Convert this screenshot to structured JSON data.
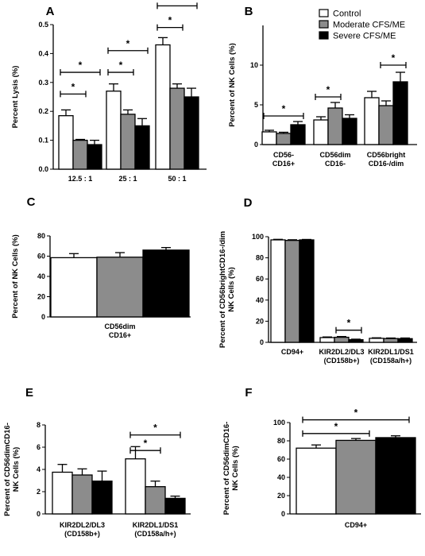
{
  "colors": {
    "Control": "#ffffff",
    "Moderate CFS/ME": "#8c8c8c",
    "Severe CFS/ME": "#000000"
  },
  "legend": {
    "items": [
      "Control",
      "Moderate CFS/ME",
      "Severe CFS/ME"
    ],
    "placement": "top-right of panel B"
  },
  "chart_data": [
    {
      "panel": "A",
      "type": "bar",
      "ylabel": "Percent Lysis (%)",
      "ylim": [
        0,
        0.5
      ],
      "yticks": [
        0,
        0.1,
        0.2,
        0.3,
        0.4,
        0.5
      ],
      "ytick_labels": [
        "0.0",
        "0.1",
        "0.2",
        "0.3",
        "0.4",
        "0.5"
      ],
      "categories": [
        [
          "12.5 : 1"
        ],
        [
          "25 : 1"
        ],
        [
          "50 : 1"
        ]
      ],
      "series": [
        {
          "name": "Control",
          "values": [
            0.185,
            0.27,
            0.43
          ],
          "errors": [
            0.02,
            0.025,
            0.025
          ]
        },
        {
          "name": "Moderate CFS/ME",
          "values": [
            0.1,
            0.19,
            0.28
          ],
          "errors": [
            0.003,
            0.015,
            0.015
          ]
        },
        {
          "name": "Severe CFS/ME",
          "values": [
            0.085,
            0.15,
            0.25
          ],
          "errors": [
            0.015,
            0.025,
            0.03
          ]
        }
      ],
      "significance": [
        {
          "category": 0,
          "from": 0,
          "to": 1,
          "y": 0.26,
          "label": "*"
        },
        {
          "category": 0,
          "from": 0,
          "to": 2,
          "y": 0.335,
          "label": "*"
        },
        {
          "category": 1,
          "from": 0,
          "to": 1,
          "y": 0.335,
          "label": "*"
        },
        {
          "category": 1,
          "from": 0,
          "to": 2,
          "y": 0.41,
          "label": "*"
        },
        {
          "category": 2,
          "from": 0,
          "to": 1,
          "y": 0.49,
          "label": "*"
        },
        {
          "category": 2,
          "from": 0,
          "to": 2,
          "y": 0.565,
          "label": "*"
        }
      ]
    },
    {
      "panel": "B",
      "type": "bar",
      "ylabel": "Percent of NK Cells (%)",
      "ylim": [
        0,
        15
      ],
      "yticks": [
        0,
        5,
        10
      ],
      "ytick_labels": [
        "0",
        "5",
        "10"
      ],
      "categories": [
        [
          "CD56-",
          "CD16+"
        ],
        [
          "CD56dim",
          "CD16-"
        ],
        [
          "CD56bright",
          "CD16-/dim"
        ]
      ],
      "series": [
        {
          "name": "Control",
          "values": [
            1.6,
            3.1,
            5.9
          ],
          "errors": [
            0.2,
            0.4,
            0.8
          ]
        },
        {
          "name": "Moderate CFS/ME",
          "values": [
            1.4,
            4.6,
            4.9
          ],
          "errors": [
            0.15,
            0.7,
            0.6
          ]
        },
        {
          "name": "Severe CFS/ME",
          "values": [
            2.5,
            3.3,
            7.9
          ],
          "errors": [
            0.4,
            0.45,
            1.2
          ]
        }
      ],
      "significance": [
        {
          "category": 0,
          "from": 0,
          "to": 2,
          "y": 3.6,
          "label": "*"
        },
        {
          "category": 1,
          "from": 0,
          "to": 1,
          "y": 6.0,
          "label": "*"
        },
        {
          "category": 2,
          "from": 1,
          "to": 2,
          "y": 10.0,
          "label": "*"
        }
      ]
    },
    {
      "panel": "C",
      "type": "bar",
      "ylabel": "Percent of NK Cells (%)",
      "ylim": [
        0,
        80
      ],
      "yticks": [
        0,
        20,
        40,
        60,
        80
      ],
      "ytick_labels": [
        "0",
        "20",
        "40",
        "60",
        "80"
      ],
      "categories": [
        [
          "CD56dim",
          "CD16+"
        ]
      ],
      "series": [
        {
          "name": "Control",
          "values": [
            58.5
          ],
          "errors": [
            4.0
          ]
        },
        {
          "name": "Moderate CFS/ME",
          "values": [
            59.0
          ],
          "errors": [
            4.5
          ]
        },
        {
          "name": "Severe CFS/ME",
          "values": [
            66.0
          ],
          "errors": [
            2.5
          ]
        }
      ],
      "significance": []
    },
    {
      "panel": "D",
      "type": "bar",
      "ylabel": [
        "Percent of CD56brightCD16-/dim",
        "NK Cells (%)"
      ],
      "ylim": [
        0,
        100
      ],
      "yticks": [
        0,
        20,
        40,
        60,
        80,
        100
      ],
      "ytick_labels": [
        "0",
        "20",
        "40",
        "60",
        "80",
        "100"
      ],
      "categories": [
        [
          "CD94+"
        ],
        [
          "KIR2DL2/DL3",
          "(CD158b+)"
        ],
        [
          "KIR2DL1/DS1",
          "(CD158a/h+)"
        ]
      ],
      "series": [
        {
          "name": "Control",
          "values": [
            97.0,
            4.5,
            3.8
          ],
          "errors": [
            0.5,
            0.6,
            0.5
          ]
        },
        {
          "name": "Moderate CFS/ME",
          "values": [
            96.5,
            4.8,
            3.6
          ],
          "errors": [
            0.6,
            0.7,
            0.5
          ]
        },
        {
          "name": "Severe CFS/ME",
          "values": [
            97.0,
            2.5,
            3.5
          ],
          "errors": [
            0.4,
            0.5,
            0.6
          ]
        }
      ],
      "significance": [
        {
          "category": 1,
          "from": 1,
          "to": 2,
          "y": 11.5,
          "label": "*"
        }
      ]
    },
    {
      "panel": "E",
      "type": "bar",
      "ylabel": [
        "Percent of CD56dimCD16-",
        "NK Cells (%)"
      ],
      "ylim": [
        0,
        8
      ],
      "yticks": [
        0,
        2,
        4,
        6,
        8
      ],
      "ytick_labels": [
        "0",
        "2",
        "4",
        "6",
        "8"
      ],
      "categories": [
        [
          "KIR2DL2/DL3",
          "(CD158b+)"
        ],
        [
          "KIR2DL1/DS1",
          "(CD158a/h+)"
        ]
      ],
      "series": [
        {
          "name": "Control",
          "values": [
            3.75,
            4.95
          ],
          "errors": [
            0.7,
            1.1
          ]
        },
        {
          "name": "Moderate CFS/ME",
          "values": [
            3.5,
            2.45
          ],
          "errors": [
            0.55,
            0.5
          ]
        },
        {
          "name": "Severe CFS/ME",
          "values": [
            2.95,
            1.4
          ],
          "errors": [
            0.9,
            0.2
          ]
        }
      ],
      "significance": [
        {
          "category": 1,
          "from": 0,
          "to": 1,
          "y": 5.7,
          "label": "*"
        },
        {
          "category": 1,
          "from": 0,
          "to": 2,
          "y": 7.1,
          "label": "*"
        }
      ]
    },
    {
      "panel": "F",
      "type": "bar",
      "ylabel": [
        "Percent of CD56dimCD16-",
        "NK Cells (%)"
      ],
      "ylim": [
        0,
        100
      ],
      "yticks": [
        0,
        20,
        40,
        60,
        80,
        100
      ],
      "ytick_labels": [
        "0",
        "20",
        "40",
        "60",
        "80",
        "100"
      ],
      "categories": [
        [
          "CD94+"
        ]
      ],
      "series": [
        {
          "name": "Control",
          "values": [
            72.0
          ],
          "errors": [
            3.5
          ]
        },
        {
          "name": "Moderate CFS/ME",
          "values": [
            80.5
          ],
          "errors": [
            2.0
          ]
        },
        {
          "name": "Severe CFS/ME",
          "values": [
            83.5
          ],
          "errors": [
            2.0
          ]
        }
      ],
      "significance": [
        {
          "category": 0,
          "from": 0,
          "to": 1,
          "y": 88,
          "label": "*"
        },
        {
          "category": 0,
          "from": 0,
          "to": 2,
          "y": 103,
          "label": "*"
        }
      ]
    }
  ]
}
